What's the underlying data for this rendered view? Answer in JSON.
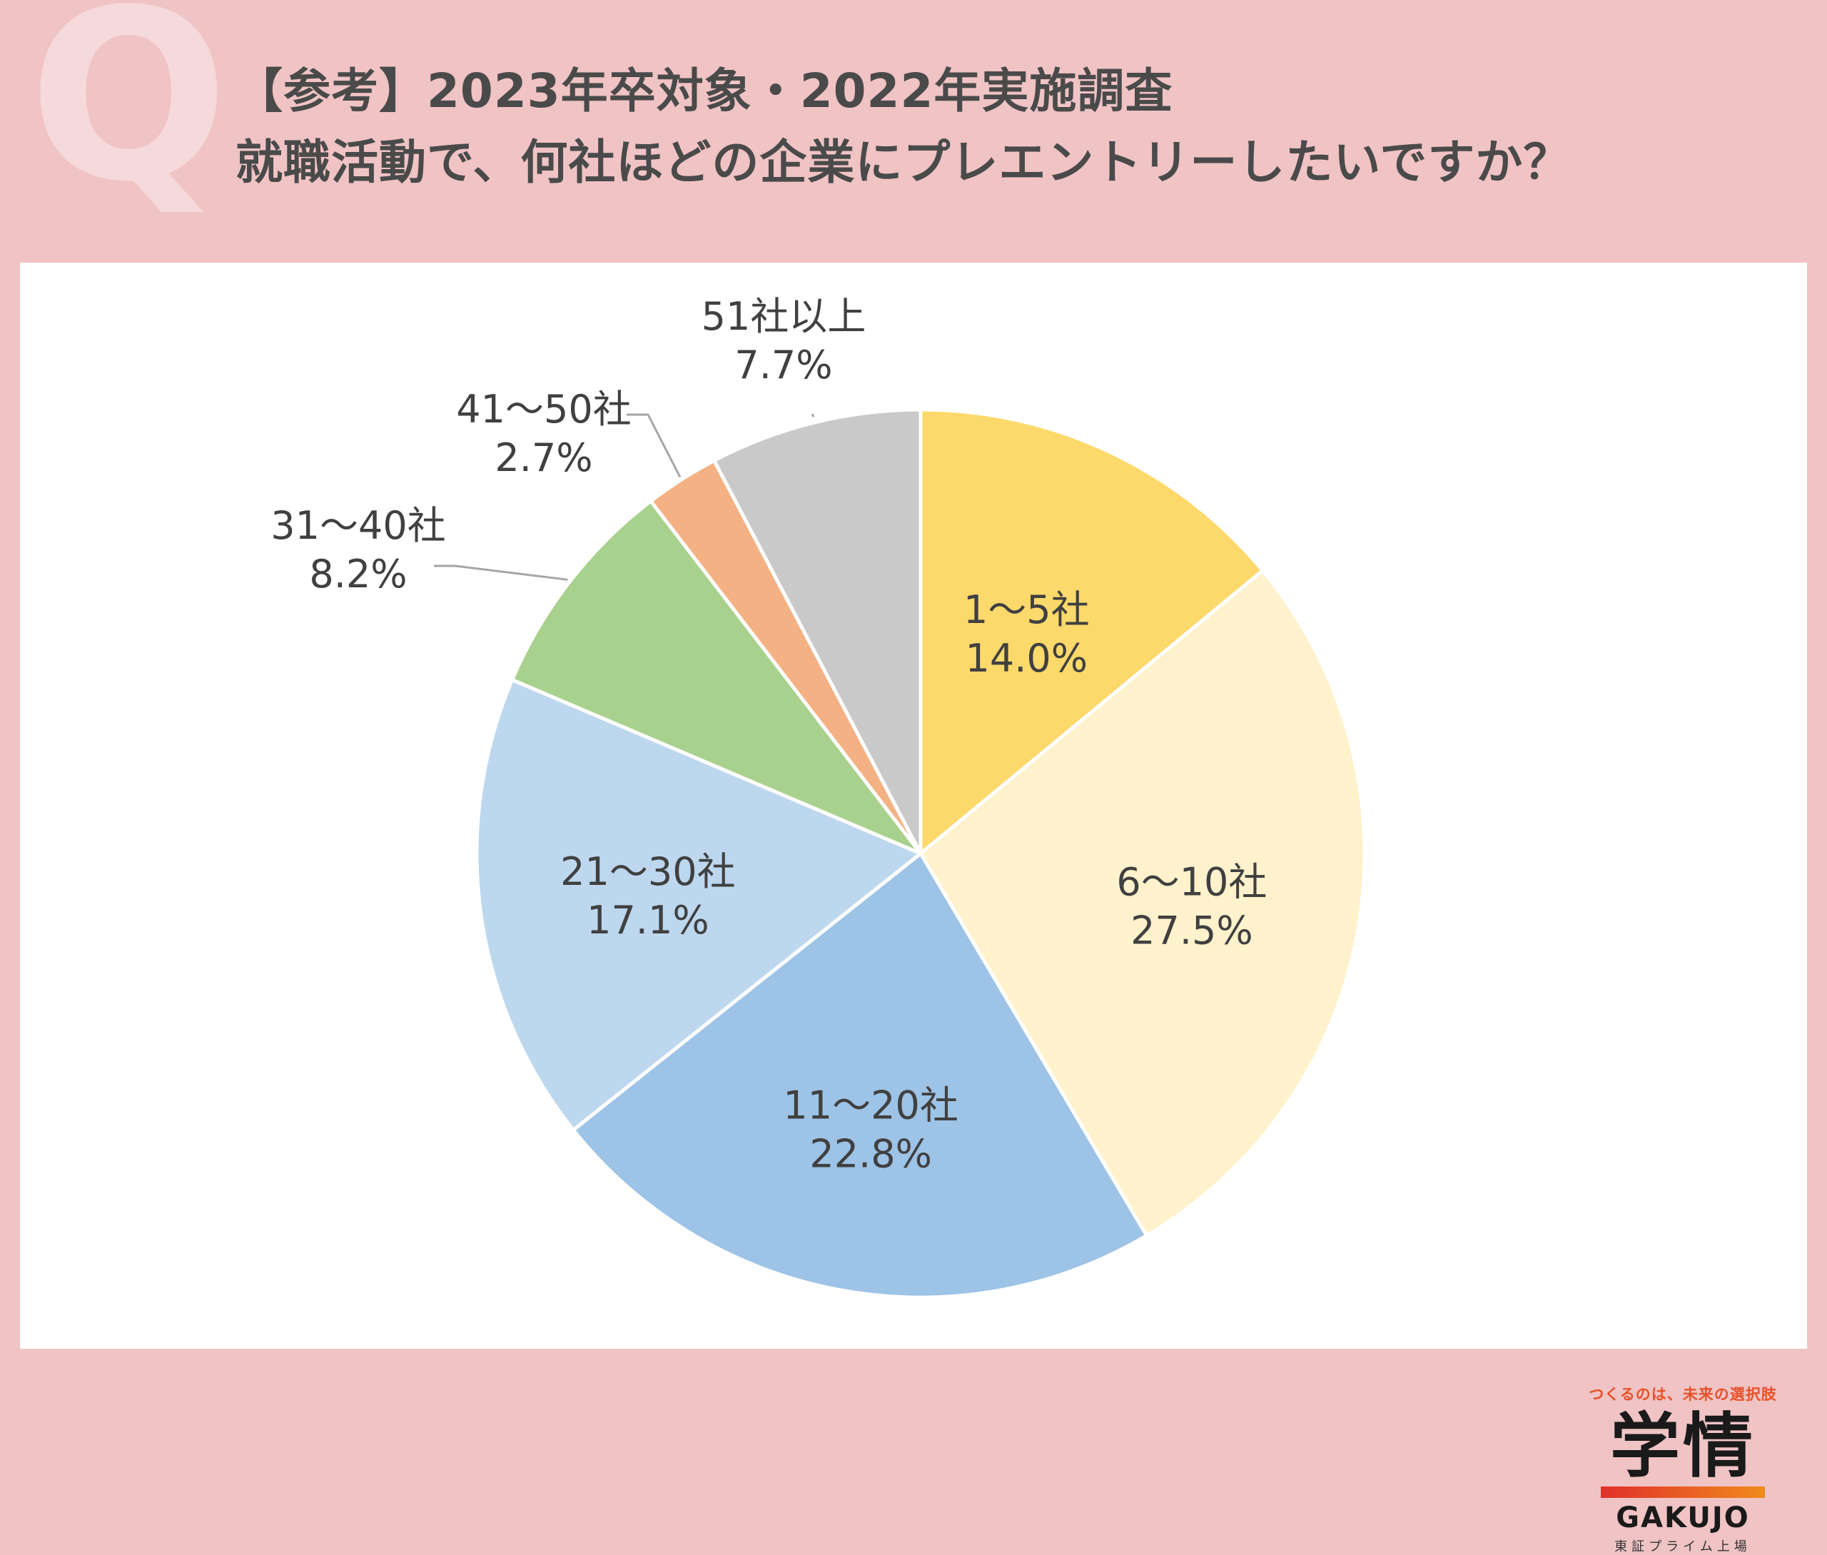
{
  "header": {
    "q_letter": "Q",
    "title_line1": "【参考】2023年卒対象・2022年実施調査",
    "title_line2": "就職活動で、何社ほどの企業にプレエントリーしたいですか？"
  },
  "logo": {
    "tagline": "つくるのは、未来の選択肢",
    "kanji": "学情",
    "roman": "GAKUJO",
    "listing": "東証プライム上場"
  },
  "chart_data": {
    "type": "pie",
    "title": "",
    "slices": [
      {
        "label": "1～5社",
        "value": 14.0,
        "display": "14.0%",
        "color": "#fdd96b"
      },
      {
        "label": "6～10社",
        "value": 27.5,
        "display": "27.5%",
        "color": "#fff2cc"
      },
      {
        "label": "11～20社",
        "value": 22.8,
        "display": "22.8%",
        "color": "#9dc3e6"
      },
      {
        "label": "21～30社",
        "value": 17.1,
        "display": "17.1%",
        "color": "#bdd7ee"
      },
      {
        "label": "31～40社",
        "value": 8.2,
        "display": "8.2%",
        "color": "#a9d18e"
      },
      {
        "label": "41～50社",
        "value": 2.7,
        "display": "2.7%",
        "color": "#f4b183"
      },
      {
        "label": "51社以上",
        "value": 7.7,
        "display": "7.7%",
        "color": "#c9c9c9"
      }
    ],
    "start_angle": "12 o'clock",
    "direction": "clockwise",
    "legend": "none"
  }
}
